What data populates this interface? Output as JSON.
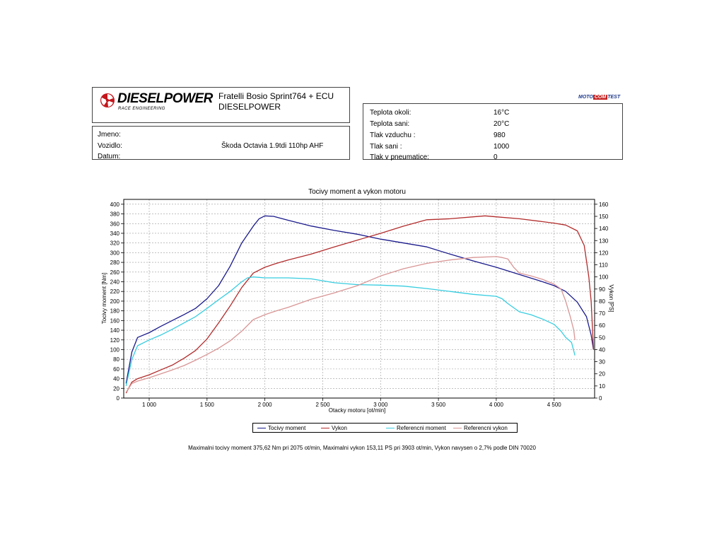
{
  "header": {
    "logo_text": "DIESELPOWER",
    "logo_subtitle": "RACE ENGINEERING",
    "dyno_title_line1": "Fratelli Bosio Sprint764 + ECU",
    "dyno_title_line2": "DIESELPOWER",
    "badge_left": "MOTO",
    "badge_mid": "COM",
    "badge_right": "TEST"
  },
  "info": {
    "jmeno_label": "Jmeno:",
    "vozidlo_label": "Vozidlo:",
    "vozidlo_value": "Škoda Octavia 1.9tdi 110hp AHF",
    "datum_label": "Datum:"
  },
  "conditions": [
    {
      "label": "Teplota okoli:",
      "value": "16°C"
    },
    {
      "label": "Teplota sani:",
      "value": "20°C"
    },
    {
      "label": "Tlak vzduchu :",
      "value": "980"
    },
    {
      "label": "Tlak sani :",
      "value": "1000"
    },
    {
      "label": "Tlak v pneumatice:",
      "value": "0"
    }
  ],
  "colors": {
    "torque": "#1a1a8c",
    "power": "#b22c2c",
    "ref_torque": "#37cde0",
    "ref_power": "#d99595",
    "grid": "#9a9a9a"
  },
  "caption": "Maximalni tocivy moment 375,62 Nm pri 2075 ot/min,  Maximalni vykon 153,11 PS pri 3903 ot/min,  Vykon navysen o 2,7% podle DIN 70020",
  "chart_data": {
    "type": "line",
    "title": "Tocivy moment a vykon motoru",
    "xlabel": "Otacky motoru [ot/min]",
    "ylabel_left": "Tocivy moment [Nm]",
    "ylabel_right": "Vykon [PS]",
    "xlim": [
      780,
      4850
    ],
    "ylim_left": [
      0,
      410
    ],
    "ylim_right": [
      0,
      164
    ],
    "x_ticks": [
      1000,
      1500,
      2000,
      2500,
      3000,
      3500,
      4000,
      4500
    ],
    "x_tick_labels": [
      "1 000",
      "1 500",
      "2 000",
      "2 500",
      "3 000",
      "3 500",
      "4 000",
      "4 500"
    ],
    "y_left_ticks": [
      0,
      20,
      40,
      60,
      80,
      100,
      120,
      140,
      160,
      180,
      200,
      220,
      240,
      260,
      280,
      300,
      320,
      340,
      360,
      380,
      400
    ],
    "y_right_ticks": [
      0,
      10,
      20,
      30,
      40,
      50,
      60,
      70,
      80,
      90,
      100,
      110,
      120,
      130,
      140,
      150,
      160
    ],
    "grid": true,
    "legend_position": "bottom",
    "series": [
      {
        "name": "Tocivy moment",
        "axis": "left",
        "x": [
          800,
          850,
          900,
          1000,
          1100,
          1200,
          1300,
          1400,
          1500,
          1600,
          1700,
          1800,
          1900,
          1950,
          2000,
          2075,
          2200,
          2400,
          2600,
          2800,
          3000,
          3200,
          3400,
          3600,
          3800,
          4000,
          4200,
          4400,
          4500,
          4600,
          4700,
          4780,
          4820,
          4840
        ],
        "y": [
          30,
          95,
          125,
          135,
          148,
          160,
          172,
          185,
          205,
          232,
          272,
          320,
          355,
          370,
          376,
          375,
          367,
          355,
          346,
          338,
          328,
          320,
          312,
          297,
          283,
          270,
          255,
          240,
          232,
          220,
          198,
          168,
          130,
          100
        ]
      },
      {
        "name": "Vykon",
        "axis": "left",
        "x": [
          800,
          850,
          900,
          1000,
          1100,
          1200,
          1300,
          1400,
          1500,
          1600,
          1700,
          1800,
          1900,
          2000,
          2100,
          2200,
          2400,
          2600,
          2800,
          3000,
          3200,
          3400,
          3600,
          3800,
          3903,
          4000,
          4200,
          4400,
          4500,
          4600,
          4700,
          4760,
          4800,
          4820,
          4840
        ],
        "y": [
          10,
          33,
          40,
          48,
          58,
          68,
          82,
          98,
          122,
          155,
          190,
          228,
          258,
          270,
          278,
          285,
          297,
          312,
          326,
          340,
          355,
          368,
          370,
          374,
          376,
          374,
          370,
          364,
          361,
          357,
          345,
          315,
          250,
          200,
          100
        ]
      },
      {
        "name": "Referencni moment",
        "axis": "left",
        "x": [
          800,
          850,
          900,
          1000,
          1100,
          1200,
          1300,
          1400,
          1500,
          1600,
          1700,
          1800,
          1850,
          1900,
          1950,
          2000,
          2200,
          2400,
          2600,
          2800,
          3000,
          3200,
          3400,
          3600,
          3800,
          4000,
          4050,
          4100,
          4200,
          4300,
          4400,
          4500,
          4560,
          4600,
          4650,
          4680
        ],
        "y": [
          25,
          80,
          108,
          120,
          130,
          142,
          155,
          168,
          185,
          203,
          220,
          240,
          248,
          250,
          249,
          248,
          248,
          246,
          238,
          234,
          233,
          231,
          226,
          220,
          214,
          210,
          205,
          195,
          178,
          172,
          163,
          152,
          138,
          125,
          115,
          88
        ]
      },
      {
        "name": "Referencni vykon",
        "axis": "left",
        "x": [
          800,
          850,
          900,
          1000,
          1100,
          1200,
          1300,
          1400,
          1500,
          1600,
          1700,
          1800,
          1900,
          2000,
          2100,
          2200,
          2400,
          2600,
          2800,
          3000,
          3200,
          3400,
          3600,
          3800,
          4000,
          4050,
          4100,
          4150,
          4200,
          4300,
          4400,
          4500,
          4560,
          4600,
          4640,
          4670,
          4680
        ],
        "y": [
          12,
          30,
          35,
          42,
          50,
          58,
          67,
          78,
          90,
          103,
          118,
          138,
          162,
          172,
          180,
          187,
          204,
          217,
          232,
          252,
          267,
          278,
          285,
          290,
          292,
          290,
          287,
          270,
          258,
          252,
          245,
          235,
          225,
          200,
          168,
          140,
          120
        ]
      }
    ]
  }
}
